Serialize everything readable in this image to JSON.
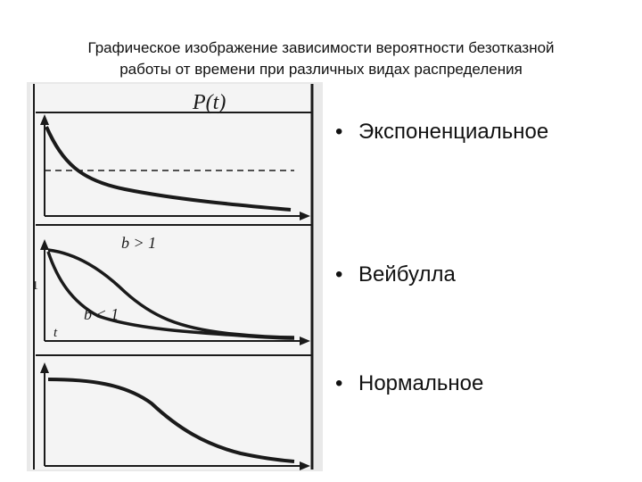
{
  "title": {
    "line1": "Графическое изображение  зависимости вероятности безотказной",
    "line2": "работы  от времени при   различных видах распределения"
  },
  "figure": {
    "panel1_label": "P(t)",
    "panel2_label_upper": "b > 1",
    "panel2_label_lower": "b < 1",
    "panel2_axis_label": "t",
    "panel2_side_mark": "1"
  },
  "bullets": [
    {
      "label": "Экспоненциальное"
    },
    {
      "label": "Вейбулла"
    },
    {
      "label": "Нормальное"
    }
  ],
  "colors": {
    "ink": "#1a1a1a",
    "scan_background": "#e9e9e9",
    "text": "#111111"
  }
}
